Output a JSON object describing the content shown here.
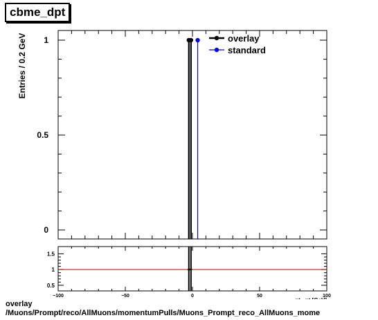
{
  "title": "cbme_dpt",
  "footer": {
    "line1": "overlay",
    "line2": "/Muons/Prompt/reco/AllMuons/momentumPulls/Muons_Prompt_reco_AllMuons_mome"
  },
  "chart_data": [
    {
      "type": "line",
      "name": "main",
      "ylabel": "Entries / 0.2 GeV",
      "xlim": [
        -100,
        100
      ],
      "ylim": [
        0,
        1
      ],
      "yticks": [
        {
          "v": 0,
          "label": "0"
        },
        {
          "v": 0.5,
          "label": "0.5"
        },
        {
          "v": 1,
          "label": "1"
        }
      ],
      "legend": {
        "placement": "top-right",
        "entries": [
          {
            "label": "overlay",
            "color": "#000000"
          },
          {
            "label": "standard",
            "color": "#0000ff"
          }
        ]
      },
      "series": [
        {
          "name": "overlay",
          "color": "#000000",
          "points": [
            {
              "x": -2.7,
              "y": 1
            },
            {
              "x": -1.1,
              "y": 1
            }
          ]
        },
        {
          "name": "standard",
          "color": "#0000ff",
          "points": [
            {
              "x": 3.9,
              "y": 1
            }
          ]
        }
      ]
    },
    {
      "type": "line",
      "name": "ratio",
      "xlabel": "pt - pt     [GeV]",
      "xlim": [
        -100,
        100
      ],
      "ylim": [
        0.32,
        1.73
      ],
      "xticks": [
        {
          "v": -100,
          "label": "−100"
        },
        {
          "v": -50,
          "label": "−50"
        },
        {
          "v": 0,
          "label": "0"
        },
        {
          "v": 50,
          "label": "50"
        },
        {
          "v": 100,
          "label": "100"
        }
      ],
      "yticks": [
        {
          "v": 0.5,
          "label": "0.5"
        },
        {
          "v": 1,
          "label": "1"
        },
        {
          "v": 1.5,
          "label": "1.5"
        }
      ],
      "reference_line": {
        "y": 1,
        "color": "#cc0000"
      },
      "series": [
        {
          "name": "overlay/standard",
          "color": "#000000",
          "points": [
            {
              "x": -2.7,
              "y": 1
            },
            {
              "x": -1.1,
              "y": 1
            }
          ]
        }
      ]
    }
  ]
}
